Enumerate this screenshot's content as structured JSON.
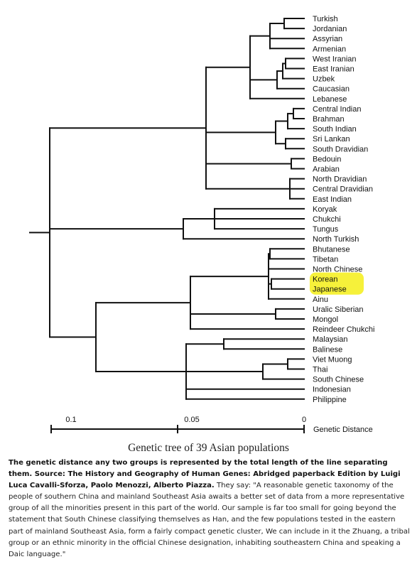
{
  "populations": [
    "Turkish",
    "Jordanian",
    "Assyrian",
    "Armenian",
    "West Iranian",
    "East Iranian",
    "Uzbek",
    "Caucasian",
    "Lebanese",
    "Central  Indian",
    "Brahman",
    "South Indian",
    "Sri Lankan",
    "South Dravidian",
    "Bedouin",
    "Arabian",
    "North Dravidian",
    "Central Dravidian",
    "East Indian",
    "Koryak",
    "Chukchi",
    "Tungus",
    "North Turkish",
    "Bhutanese",
    "Tibetan",
    "North Chinese",
    "Korean",
    "Japanese",
    "Ainu",
    "Uralic Siberian",
    "Mongol",
    "Reindeer Chukchi",
    "Malaysian",
    "Balinese",
    "Viet Muong",
    "Thai",
    "South Chinese",
    "Indonesian",
    "Philippine"
  ],
  "highlighted": [
    "Korean",
    "Japanese"
  ],
  "highlight_color": "#f6f13a",
  "scale": {
    "ticks": [
      {
        "value": 0.1,
        "label": "0.1"
      },
      {
        "value": 0.05,
        "label": "0.05"
      },
      {
        "value": 0,
        "label": "0"
      }
    ],
    "axis_label": "Genetic Distance"
  },
  "caption": {
    "title": "Genetic tree of 39 Asian populations",
    "bold_text": "The genetic distance any two groups is represented by the total length of the line separating them. Source: The History and Geography of Human Genes: Abridged paperback Edition by Luigi Luca Cavalli-Sforza, Paolo Menozzi, Alberto Piazza.",
    "body_text": " They say: \"A reasonable genetic taxonomy of the people of southern China and mainland Southeast Asia awaits a better set of data from a more representative group of all the minorities present in this part of the world. Our sample is far too small for going beyond the statement that South Chinese classifying themselves as Han, and the few populations tested in the eastern part of mainland Southeast Asia, form a fairly compact genetic cluster, We can include in it the Zhuang, a tribal group or an ethnic minority in the official Chinese designation, inhabiting southeastern China and speaking a Daic language.\""
  }
}
